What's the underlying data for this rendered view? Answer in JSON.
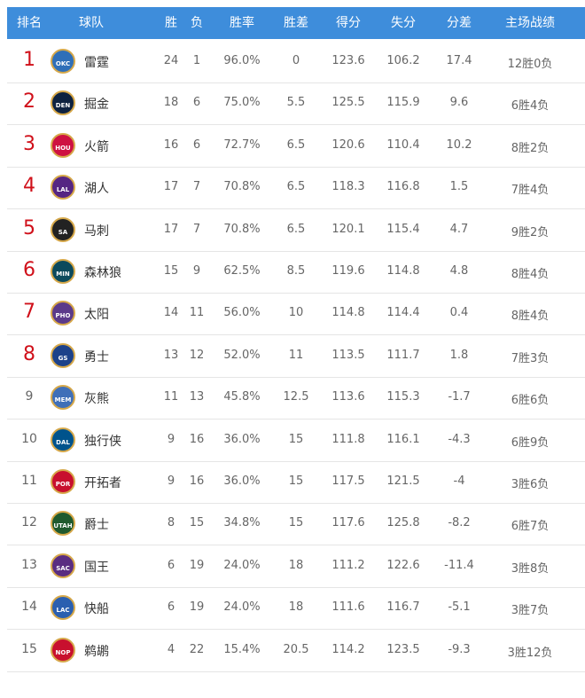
{
  "table": {
    "header": [
      "排名",
      "球队",
      "胜",
      "负",
      "胜率",
      "胜差",
      "得分",
      "失分",
      "分差",
      "主场战绩"
    ],
    "rows": [
      {
        "rank": "1",
        "abbr": "OKC",
        "logo_color": "#2f6fb8",
        "team": "雷霆",
        "cells": [
          "24",
          "1",
          "96.0%",
          "0",
          "123.6",
          "106.2",
          "17.4",
          "12胜0负"
        ]
      },
      {
        "rank": "2",
        "abbr": "DEN",
        "logo_color": "#0e2240",
        "team": "掘金",
        "cells": [
          "18",
          "6",
          "75.0%",
          "5.5",
          "125.5",
          "115.9",
          "9.6",
          "6胜4负"
        ]
      },
      {
        "rank": "3",
        "abbr": "HOU",
        "logo_color": "#ce1141",
        "team": "火箭",
        "cells": [
          "16",
          "6",
          "72.7%",
          "6.5",
          "120.6",
          "110.4",
          "10.2",
          "8胜2负"
        ]
      },
      {
        "rank": "4",
        "abbr": "LAL",
        "logo_color": "#552583",
        "team": "湖人",
        "cells": [
          "17",
          "7",
          "70.8%",
          "6.5",
          "118.3",
          "116.8",
          "1.5",
          "7胜4负"
        ]
      },
      {
        "rank": "5",
        "abbr": "SA",
        "logo_color": "#222222",
        "team": "马刺",
        "cells": [
          "17",
          "7",
          "70.8%",
          "6.5",
          "120.1",
          "115.4",
          "4.7",
          "9胜2负"
        ]
      },
      {
        "rank": "6",
        "abbr": "MIN",
        "logo_color": "#0c4a5c",
        "team": "森林狼",
        "cells": [
          "15",
          "9",
          "62.5%",
          "8.5",
          "119.6",
          "114.8",
          "4.8",
          "8胜4负"
        ]
      },
      {
        "rank": "7",
        "abbr": "PHO",
        "logo_color": "#5b3a8a",
        "team": "太阳",
        "cells": [
          "14",
          "11",
          "56.0%",
          "10",
          "114.8",
          "114.4",
          "0.4",
          "8胜4负"
        ]
      },
      {
        "rank": "8",
        "abbr": "GS",
        "logo_color": "#1d428a",
        "team": "勇士",
        "cells": [
          "13",
          "12",
          "52.0%",
          "11",
          "113.5",
          "111.7",
          "1.8",
          "7胜3负"
        ]
      },
      {
        "rank": "9",
        "abbr": "MEM",
        "logo_color": "#3f6fb8",
        "team": "灰熊",
        "cells": [
          "11",
          "13",
          "45.8%",
          "12.5",
          "113.6",
          "115.3",
          "-1.7",
          "6胜6负"
        ]
      },
      {
        "rank": "10",
        "abbr": "DAL",
        "logo_color": "#00538c",
        "team": "独行侠",
        "cells": [
          "9",
          "16",
          "36.0%",
          "15",
          "111.8",
          "116.1",
          "-4.3",
          "6胜9负"
        ]
      },
      {
        "rank": "11",
        "abbr": "POR",
        "logo_color": "#c8102e",
        "team": "开拓者",
        "cells": [
          "9",
          "16",
          "36.0%",
          "15",
          "117.5",
          "121.5",
          "-4",
          "3胜6负"
        ]
      },
      {
        "rank": "12",
        "abbr": "UTAH",
        "logo_color": "#1f5a2e",
        "team": "爵士",
        "cells": [
          "8",
          "15",
          "34.8%",
          "15",
          "117.6",
          "125.8",
          "-8.2",
          "6胜7负"
        ]
      },
      {
        "rank": "13",
        "abbr": "SAC",
        "logo_color": "#5a2d81",
        "team": "国王",
        "cells": [
          "6",
          "19",
          "24.0%",
          "18",
          "111.2",
          "122.6",
          "-11.4",
          "3胜8负"
        ]
      },
      {
        "rank": "14",
        "abbr": "LAC",
        "logo_color": "#2a5fb0",
        "team": "快船",
        "cells": [
          "6",
          "19",
          "24.0%",
          "18",
          "111.6",
          "116.7",
          "-5.1",
          "3胜7负"
        ]
      },
      {
        "rank": "15",
        "abbr": "NOP",
        "logo_color": "#c8102e",
        "team": "鹈鹕",
        "cells": [
          "4",
          "22",
          "15.4%",
          "20.5",
          "114.2",
          "123.5",
          "-9.3",
          "3胜12负"
        ]
      }
    ]
  }
}
